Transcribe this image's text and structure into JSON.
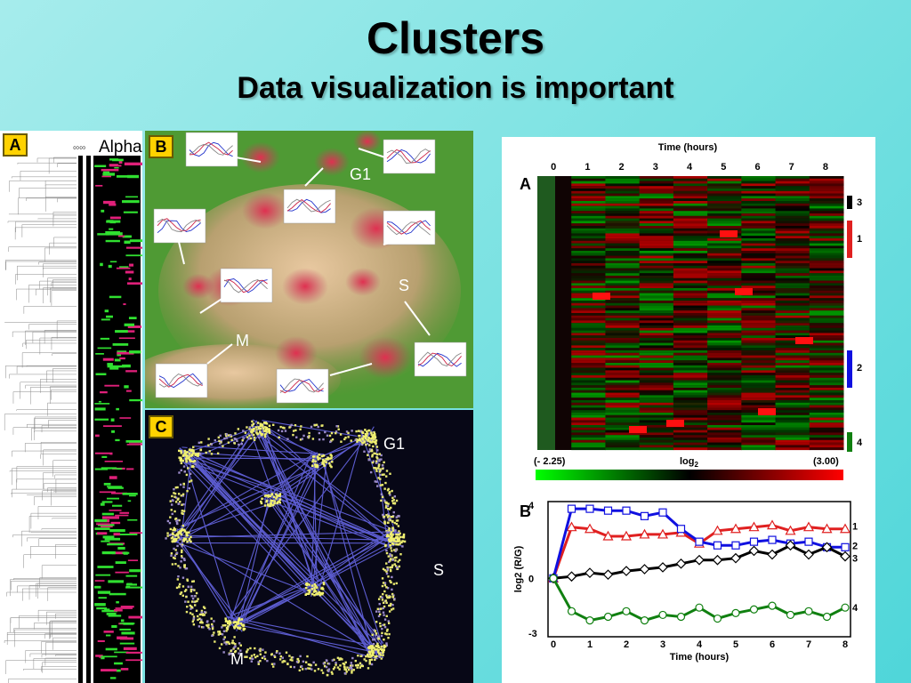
{
  "slide": {
    "title": "Clusters",
    "subtitle": "Data visualization is important"
  },
  "panel_a": {
    "label": "A",
    "alpha_label": "Alpha"
  },
  "panel_b": {
    "label": "B",
    "regions": {
      "g1": "G1",
      "s": "S",
      "m": "M"
    }
  },
  "panel_c": {
    "label": "C",
    "regions": {
      "g1": "G1",
      "s": "S",
      "m": "M"
    }
  },
  "right_figure": {
    "heatmap": {
      "panel_label": "A",
      "time_axis_title": "Time (hours)",
      "time_ticks": [
        "0",
        "1",
        "2",
        "3",
        "4",
        "5",
        "6",
        "7",
        "8"
      ],
      "cluster_labels": [
        "3",
        "1",
        "2",
        "4"
      ],
      "scale_min": "(- 2.25)",
      "scale_label": "log",
      "scale_sub": "2",
      "scale_max": "(3.00)"
    },
    "line_chart": {
      "panel_label": "B",
      "xlabel": "Time (hours)",
      "ylabel": "log2 (R/G)",
      "x_ticks": [
        "0",
        "1",
        "2",
        "3",
        "4",
        "5",
        "6",
        "7",
        "8"
      ],
      "y_ticks": [
        "4",
        "0",
        "-3"
      ],
      "series_labels": [
        "1",
        "2",
        "3",
        "4"
      ]
    }
  },
  "colors": {
    "background": "#7fe3e3",
    "heat_red": "#e00000",
    "heat_green": "#00d000",
    "series_blue": "#1010e0",
    "series_red": "#e02020",
    "series_black": "#000000",
    "series_green": "#108010"
  },
  "chart_data": {
    "type": "line",
    "title": "",
    "xlabel": "Time (hours)",
    "ylabel": "log2 (R/G)",
    "xlim": [
      0,
      8
    ],
    "ylim": [
      -3,
      4
    ],
    "x": [
      0,
      0.5,
      1,
      1.5,
      2,
      2.5,
      3,
      3.5,
      4,
      4.5,
      5,
      5.5,
      6,
      6.5,
      7,
      7.5,
      8
    ],
    "series": [
      {
        "name": "1",
        "values": [
          0,
          2.8,
          2.7,
          2.3,
          2.3,
          2.4,
          2.4,
          2.5,
          1.9,
          2.6,
          2.7,
          2.8,
          2.9,
          2.6,
          2.8,
          2.7,
          2.7
        ]
      },
      {
        "name": "2",
        "values": [
          0,
          3.8,
          3.8,
          3.7,
          3.7,
          3.4,
          3.6,
          2.7,
          2.0,
          1.8,
          1.8,
          2.0,
          2.1,
          1.9,
          2.0,
          1.7,
          1.7
        ]
      },
      {
        "name": "3",
        "values": [
          0,
          0.1,
          0.3,
          0.2,
          0.4,
          0.5,
          0.6,
          0.8,
          1.0,
          1.0,
          1.1,
          1.5,
          1.3,
          1.8,
          1.3,
          1.7,
          1.2
        ]
      },
      {
        "name": "4",
        "values": [
          0,
          -1.8,
          -2.3,
          -2.1,
          -1.8,
          -2.3,
          -2.0,
          -2.1,
          -1.6,
          -2.2,
          -1.9,
          -1.7,
          -1.5,
          -2.0,
          -1.8,
          -2.1,
          -1.6
        ]
      }
    ]
  }
}
